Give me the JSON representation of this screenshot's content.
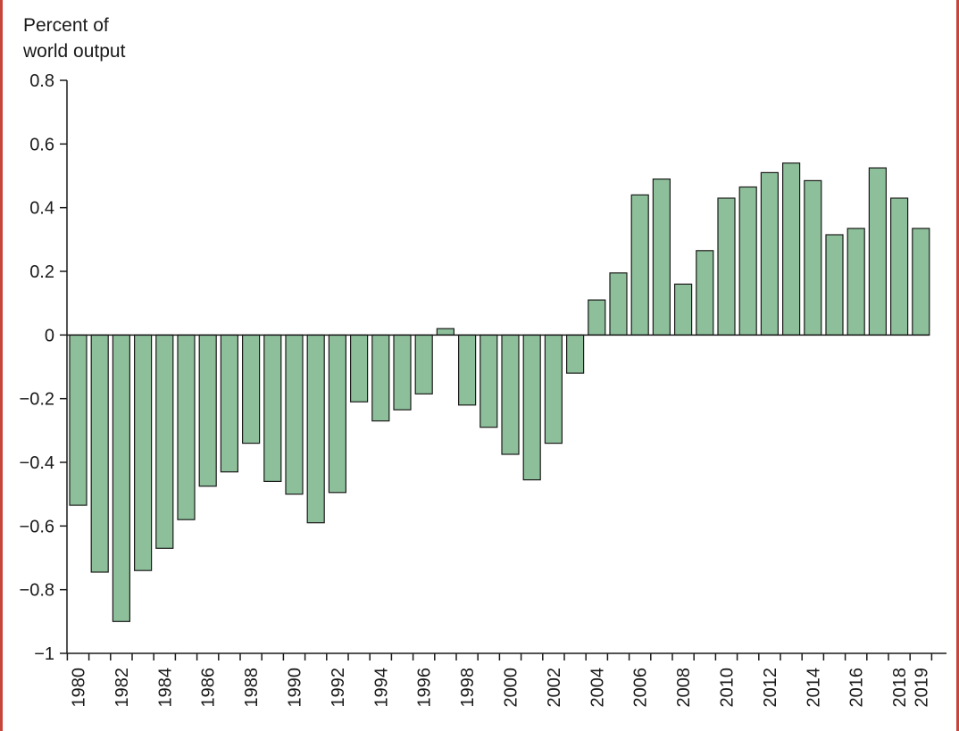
{
  "chart_data": {
    "type": "bar",
    "title": "",
    "ylabel_line1": "Percent of",
    "ylabel_line2": "world output",
    "xlabel": "",
    "ylim": [
      -1,
      0.8
    ],
    "yticks": [
      0.8,
      0.6,
      0.4,
      0.2,
      0,
      -0.2,
      -0.4,
      -0.6,
      -0.8,
      -1
    ],
    "ytick_labels": [
      "0.8",
      "0.6",
      "0.4",
      "0.2",
      "0",
      "−0.2",
      "−0.4",
      "−0.6",
      "−0.8",
      "−1"
    ],
    "categories": [
      "1980",
      "1981",
      "1982",
      "1983",
      "1984",
      "1985",
      "1986",
      "1987",
      "1988",
      "1989",
      "1990",
      "1991",
      "1992",
      "1993",
      "1994",
      "1995",
      "1996",
      "1997",
      "1998",
      "1999",
      "2000",
      "2001",
      "2002",
      "2003",
      "2004",
      "2005",
      "2006",
      "2007",
      "2008",
      "2009",
      "2010",
      "2011",
      "2012",
      "2013",
      "2014",
      "2015",
      "2016",
      "2017",
      "2018",
      "2019"
    ],
    "xtick_labels": [
      "1980",
      "1982",
      "1984",
      "1986",
      "1988",
      "1990",
      "1992",
      "1994",
      "1996",
      "1998",
      "2000",
      "2002",
      "2004",
      "2006",
      "2008",
      "2010",
      "2012",
      "2014",
      "2016",
      "2018",
      "2019"
    ],
    "values": [
      -0.535,
      -0.745,
      -0.9,
      -0.74,
      -0.67,
      -0.58,
      -0.475,
      -0.43,
      -0.34,
      -0.46,
      -0.5,
      -0.59,
      -0.495,
      -0.21,
      -0.27,
      -0.235,
      -0.185,
      0.02,
      -0.22,
      -0.29,
      -0.375,
      -0.455,
      -0.34,
      -0.12,
      0.11,
      0.195,
      0.44,
      0.49,
      0.16,
      0.265,
      0.43,
      0.465,
      0.51,
      0.54,
      0.485,
      0.315,
      0.335,
      0.525,
      0.43,
      0.335
    ],
    "bar_color": "#8dc09a",
    "grid": false
  }
}
